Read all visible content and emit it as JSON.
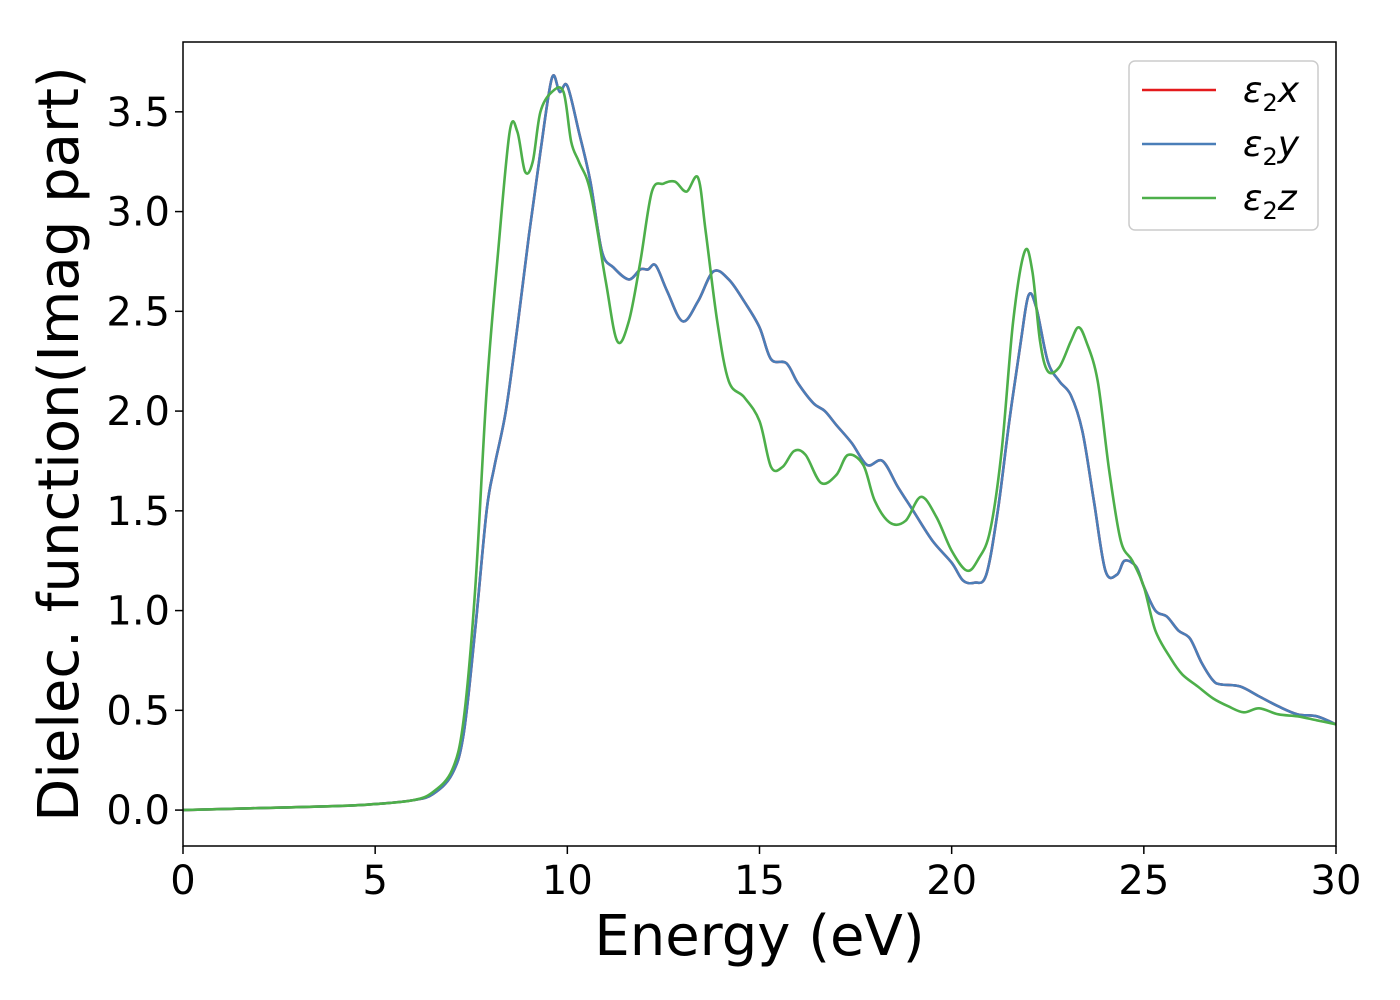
{
  "chart_data": {
    "type": "line",
    "title": "",
    "xlabel": "Energy (eV)",
    "ylabel": "Dielec. function(Imag part)",
    "xlim": [
      0,
      30
    ],
    "ylim": [
      -0.18,
      3.85
    ],
    "xticks": [
      0,
      5,
      10,
      15,
      20,
      25,
      30
    ],
    "xtick_labels": [
      "0",
      "5",
      "10",
      "15",
      "20",
      "25",
      "30"
    ],
    "yticks": [
      0.0,
      0.5,
      1.0,
      1.5,
      2.0,
      2.5,
      3.0,
      3.5
    ],
    "ytick_labels": [
      "0.0",
      "0.5",
      "1.0",
      "1.5",
      "2.0",
      "2.5",
      "3.0",
      "3.5"
    ],
    "grid": false,
    "legend_position": "top-right",
    "series": [
      {
        "name": "ε2x",
        "legend_main": "ε",
        "legend_sub": "2",
        "legend_var": "x",
        "color": "#e41a1c",
        "x": [
          0,
          2,
          4,
          5,
          6,
          6.5,
          7,
          7.3,
          7.6,
          7.9,
          8.1,
          8.4,
          8.7,
          9.0,
          9.3,
          9.6,
          9.8,
          10.0,
          10.3,
          10.6,
          10.9,
          11.2,
          11.6,
          11.9,
          12.1,
          12.3,
          12.6,
          13.0,
          13.4,
          13.8,
          14.2,
          14.6,
          15.0,
          15.3,
          15.7,
          16.0,
          16.4,
          16.7,
          17.0,
          17.4,
          17.8,
          18.2,
          18.6,
          19.0,
          19.5,
          20.0,
          20.3,
          20.6,
          20.9,
          21.2,
          21.5,
          21.8,
          22.0,
          22.2,
          22.5,
          22.8,
          23.1,
          23.4,
          23.7,
          24.0,
          24.3,
          24.5,
          24.8,
          25.0,
          25.3,
          25.6,
          25.9,
          26.2,
          26.5,
          26.8,
          27.0,
          27.5,
          28.0,
          28.5,
          29.0,
          29.5,
          30
        ],
        "values": [
          0.0,
          0.01,
          0.02,
          0.03,
          0.05,
          0.08,
          0.18,
          0.38,
          0.9,
          1.5,
          1.72,
          2.0,
          2.42,
          2.88,
          3.3,
          3.67,
          3.6,
          3.63,
          3.4,
          3.15,
          2.8,
          2.72,
          2.66,
          2.71,
          2.71,
          2.73,
          2.6,
          2.45,
          2.55,
          2.7,
          2.66,
          2.55,
          2.42,
          2.26,
          2.24,
          2.14,
          2.04,
          2.0,
          1.93,
          1.84,
          1.73,
          1.75,
          1.62,
          1.5,
          1.35,
          1.24,
          1.15,
          1.14,
          1.18,
          1.5,
          1.95,
          2.35,
          2.58,
          2.52,
          2.25,
          2.15,
          2.08,
          1.9,
          1.55,
          1.2,
          1.18,
          1.25,
          1.22,
          1.12,
          1.0,
          0.97,
          0.9,
          0.86,
          0.74,
          0.65,
          0.63,
          0.62,
          0.57,
          0.52,
          0.48,
          0.47,
          0.43
        ]
      },
      {
        "name": "ε2y",
        "legend_main": "ε",
        "legend_sub": "2",
        "legend_var": "y",
        "color": "#4a7eb8",
        "x": [
          0,
          2,
          4,
          5,
          6,
          6.5,
          7,
          7.3,
          7.6,
          7.9,
          8.1,
          8.4,
          8.7,
          9.0,
          9.3,
          9.6,
          9.8,
          10.0,
          10.3,
          10.6,
          10.9,
          11.2,
          11.6,
          11.9,
          12.1,
          12.3,
          12.6,
          13.0,
          13.4,
          13.8,
          14.2,
          14.6,
          15.0,
          15.3,
          15.7,
          16.0,
          16.4,
          16.7,
          17.0,
          17.4,
          17.8,
          18.2,
          18.6,
          19.0,
          19.5,
          20.0,
          20.3,
          20.6,
          20.9,
          21.2,
          21.5,
          21.8,
          22.0,
          22.2,
          22.5,
          22.8,
          23.1,
          23.4,
          23.7,
          24.0,
          24.3,
          24.5,
          24.8,
          25.0,
          25.3,
          25.6,
          25.9,
          26.2,
          26.5,
          26.8,
          27.0,
          27.5,
          28.0,
          28.5,
          29.0,
          29.5,
          30
        ],
        "values": [
          0.0,
          0.01,
          0.02,
          0.03,
          0.05,
          0.08,
          0.18,
          0.38,
          0.9,
          1.5,
          1.72,
          2.0,
          2.42,
          2.88,
          3.3,
          3.67,
          3.6,
          3.63,
          3.4,
          3.15,
          2.8,
          2.72,
          2.66,
          2.71,
          2.71,
          2.73,
          2.6,
          2.45,
          2.55,
          2.7,
          2.66,
          2.55,
          2.42,
          2.26,
          2.24,
          2.14,
          2.04,
          2.0,
          1.93,
          1.84,
          1.73,
          1.75,
          1.62,
          1.5,
          1.35,
          1.24,
          1.15,
          1.14,
          1.18,
          1.5,
          1.95,
          2.35,
          2.58,
          2.52,
          2.25,
          2.15,
          2.08,
          1.9,
          1.55,
          1.2,
          1.18,
          1.25,
          1.22,
          1.12,
          1.0,
          0.97,
          0.9,
          0.86,
          0.74,
          0.65,
          0.63,
          0.62,
          0.57,
          0.52,
          0.48,
          0.47,
          0.43
        ]
      },
      {
        "name": "ε2z",
        "legend_main": "ε",
        "legend_sub": "2",
        "legend_var": "z",
        "color": "#4daf4a",
        "x": [
          0,
          2,
          4,
          5,
          6,
          6.5,
          7,
          7.3,
          7.6,
          7.9,
          8.2,
          8.5,
          8.7,
          8.9,
          9.1,
          9.3,
          9.6,
          9.9,
          10.1,
          10.3,
          10.6,
          11.0,
          11.3,
          11.6,
          11.9,
          12.2,
          12.5,
          12.8,
          13.1,
          13.4,
          13.6,
          13.9,
          14.2,
          14.6,
          15.0,
          15.3,
          15.6,
          15.9,
          16.2,
          16.6,
          17.0,
          17.3,
          17.7,
          18.0,
          18.4,
          18.8,
          19.2,
          19.6,
          20.0,
          20.4,
          20.7,
          21.0,
          21.3,
          21.6,
          21.9,
          22.1,
          22.3,
          22.5,
          22.8,
          23.1,
          23.3,
          23.5,
          23.8,
          24.1,
          24.4,
          24.7,
          25.0,
          25.3,
          25.7,
          26.0,
          26.4,
          26.8,
          27.2,
          27.6,
          28.0,
          28.5,
          29.0,
          29.5,
          30
        ],
        "values": [
          0.0,
          0.01,
          0.02,
          0.03,
          0.05,
          0.09,
          0.2,
          0.45,
          1.1,
          2.1,
          2.8,
          3.4,
          3.4,
          3.2,
          3.25,
          3.5,
          3.6,
          3.6,
          3.35,
          3.25,
          3.1,
          2.65,
          2.35,
          2.45,
          2.75,
          3.1,
          3.14,
          3.15,
          3.1,
          3.17,
          2.9,
          2.45,
          2.15,
          2.07,
          1.95,
          1.72,
          1.72,
          1.8,
          1.78,
          1.64,
          1.68,
          1.78,
          1.73,
          1.55,
          1.44,
          1.45,
          1.57,
          1.47,
          1.3,
          1.2,
          1.26,
          1.4,
          1.8,
          2.45,
          2.8,
          2.7,
          2.35,
          2.2,
          2.22,
          2.35,
          2.42,
          2.35,
          2.15,
          1.7,
          1.35,
          1.25,
          1.12,
          0.9,
          0.76,
          0.68,
          0.62,
          0.56,
          0.52,
          0.49,
          0.51,
          0.48,
          0.47,
          0.45,
          0.43
        ]
      }
    ]
  }
}
